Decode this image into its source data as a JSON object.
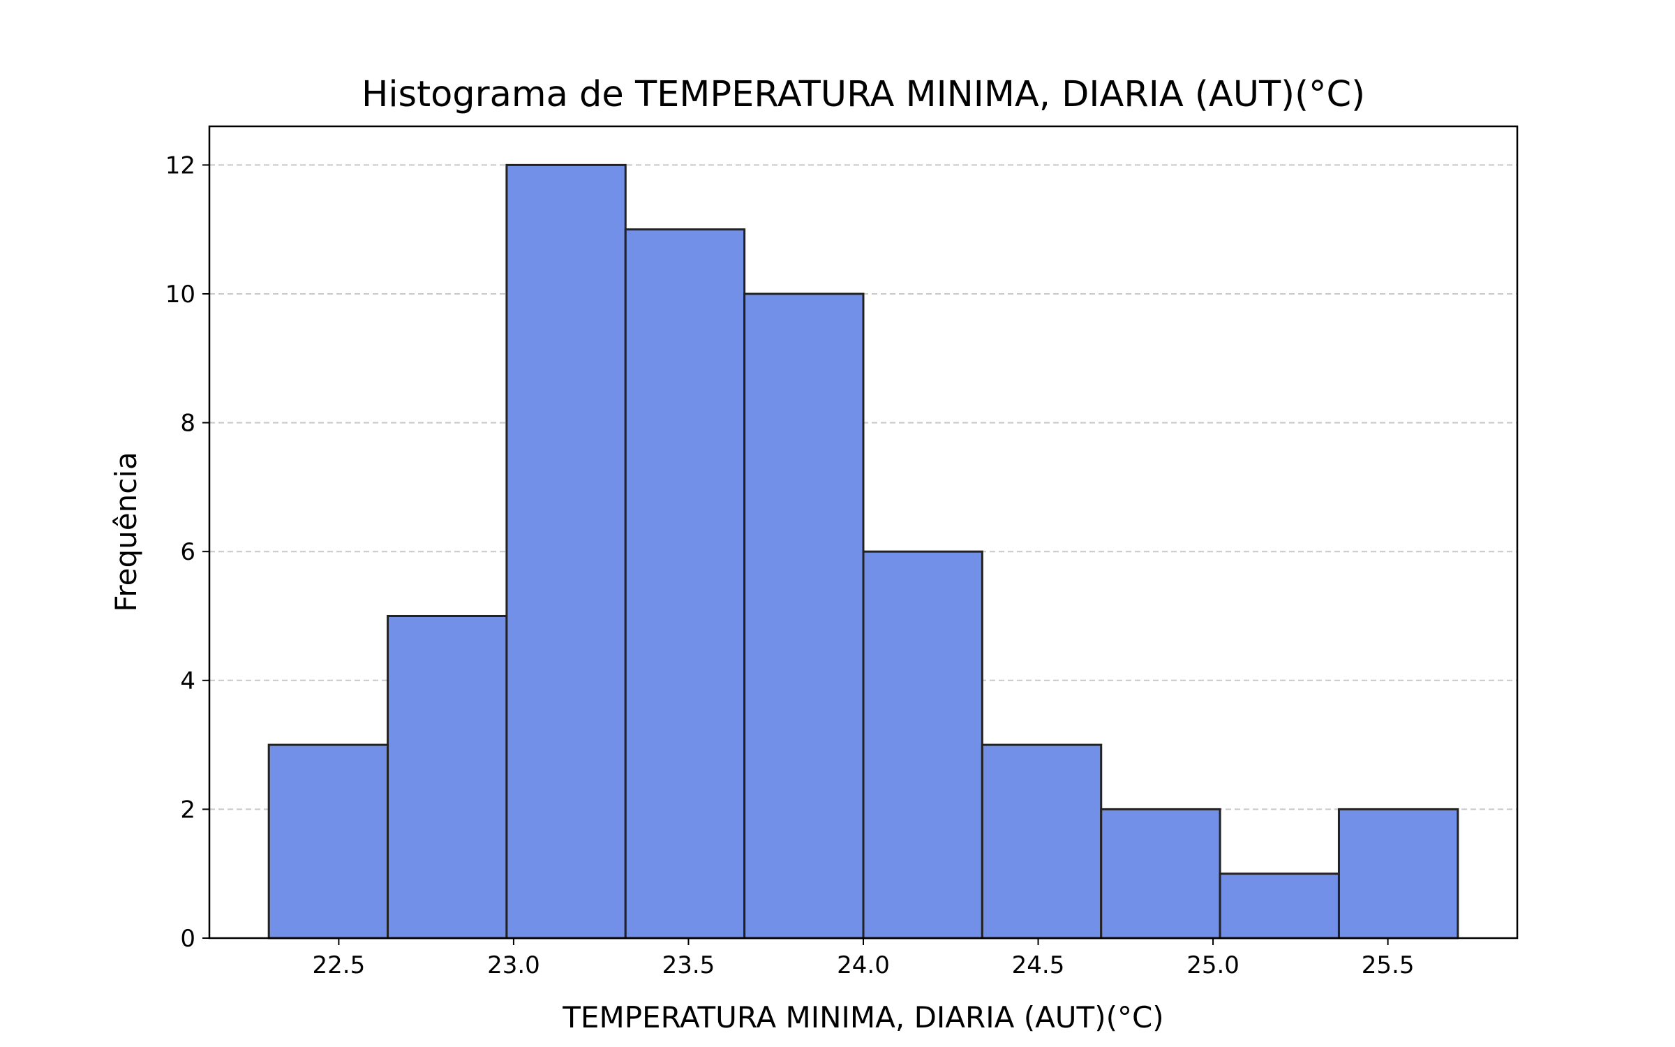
{
  "chart_data": {
    "type": "bar",
    "title": "Histograma de TEMPERATURA MINIMA, DIARIA (AUT)(°C)",
    "xlabel": "TEMPERATURA MINIMA, DIARIA (AUT)(°C)",
    "ylabel": "Frequência",
    "bins": [
      {
        "start": 22.3,
        "end": 22.64,
        "count": 3
      },
      {
        "start": 22.64,
        "end": 22.98,
        "count": 5
      },
      {
        "start": 22.98,
        "end": 23.32,
        "count": 12
      },
      {
        "start": 23.32,
        "end": 23.66,
        "count": 11
      },
      {
        "start": 23.66,
        "end": 24.0,
        "count": 10
      },
      {
        "start": 24.0,
        "end": 24.34,
        "count": 6
      },
      {
        "start": 24.34,
        "end": 24.68,
        "count": 3
      },
      {
        "start": 24.68,
        "end": 25.02,
        "count": 2
      },
      {
        "start": 25.02,
        "end": 25.36,
        "count": 1
      },
      {
        "start": 25.36,
        "end": 25.7,
        "count": 2
      }
    ],
    "xlim": [
      22.13,
      25.87
    ],
    "ylim": [
      0,
      12.6
    ],
    "x_ticks": [
      22.5,
      23.0,
      23.5,
      24.0,
      24.5,
      25.0,
      25.5
    ],
    "x_tick_labels": [
      "22.5",
      "23.0",
      "23.5",
      "24.0",
      "24.5",
      "25.0",
      "25.5"
    ],
    "y_ticks": [
      0,
      2,
      4,
      6,
      8,
      10,
      12
    ],
    "y_tick_labels": [
      "0",
      "2",
      "4",
      "6",
      "8",
      "10",
      "12"
    ],
    "grid": "y-dashed",
    "bar_color": "#7290e8",
    "edge_color": "#222222",
    "grid_color": "#c8c8c8"
  }
}
